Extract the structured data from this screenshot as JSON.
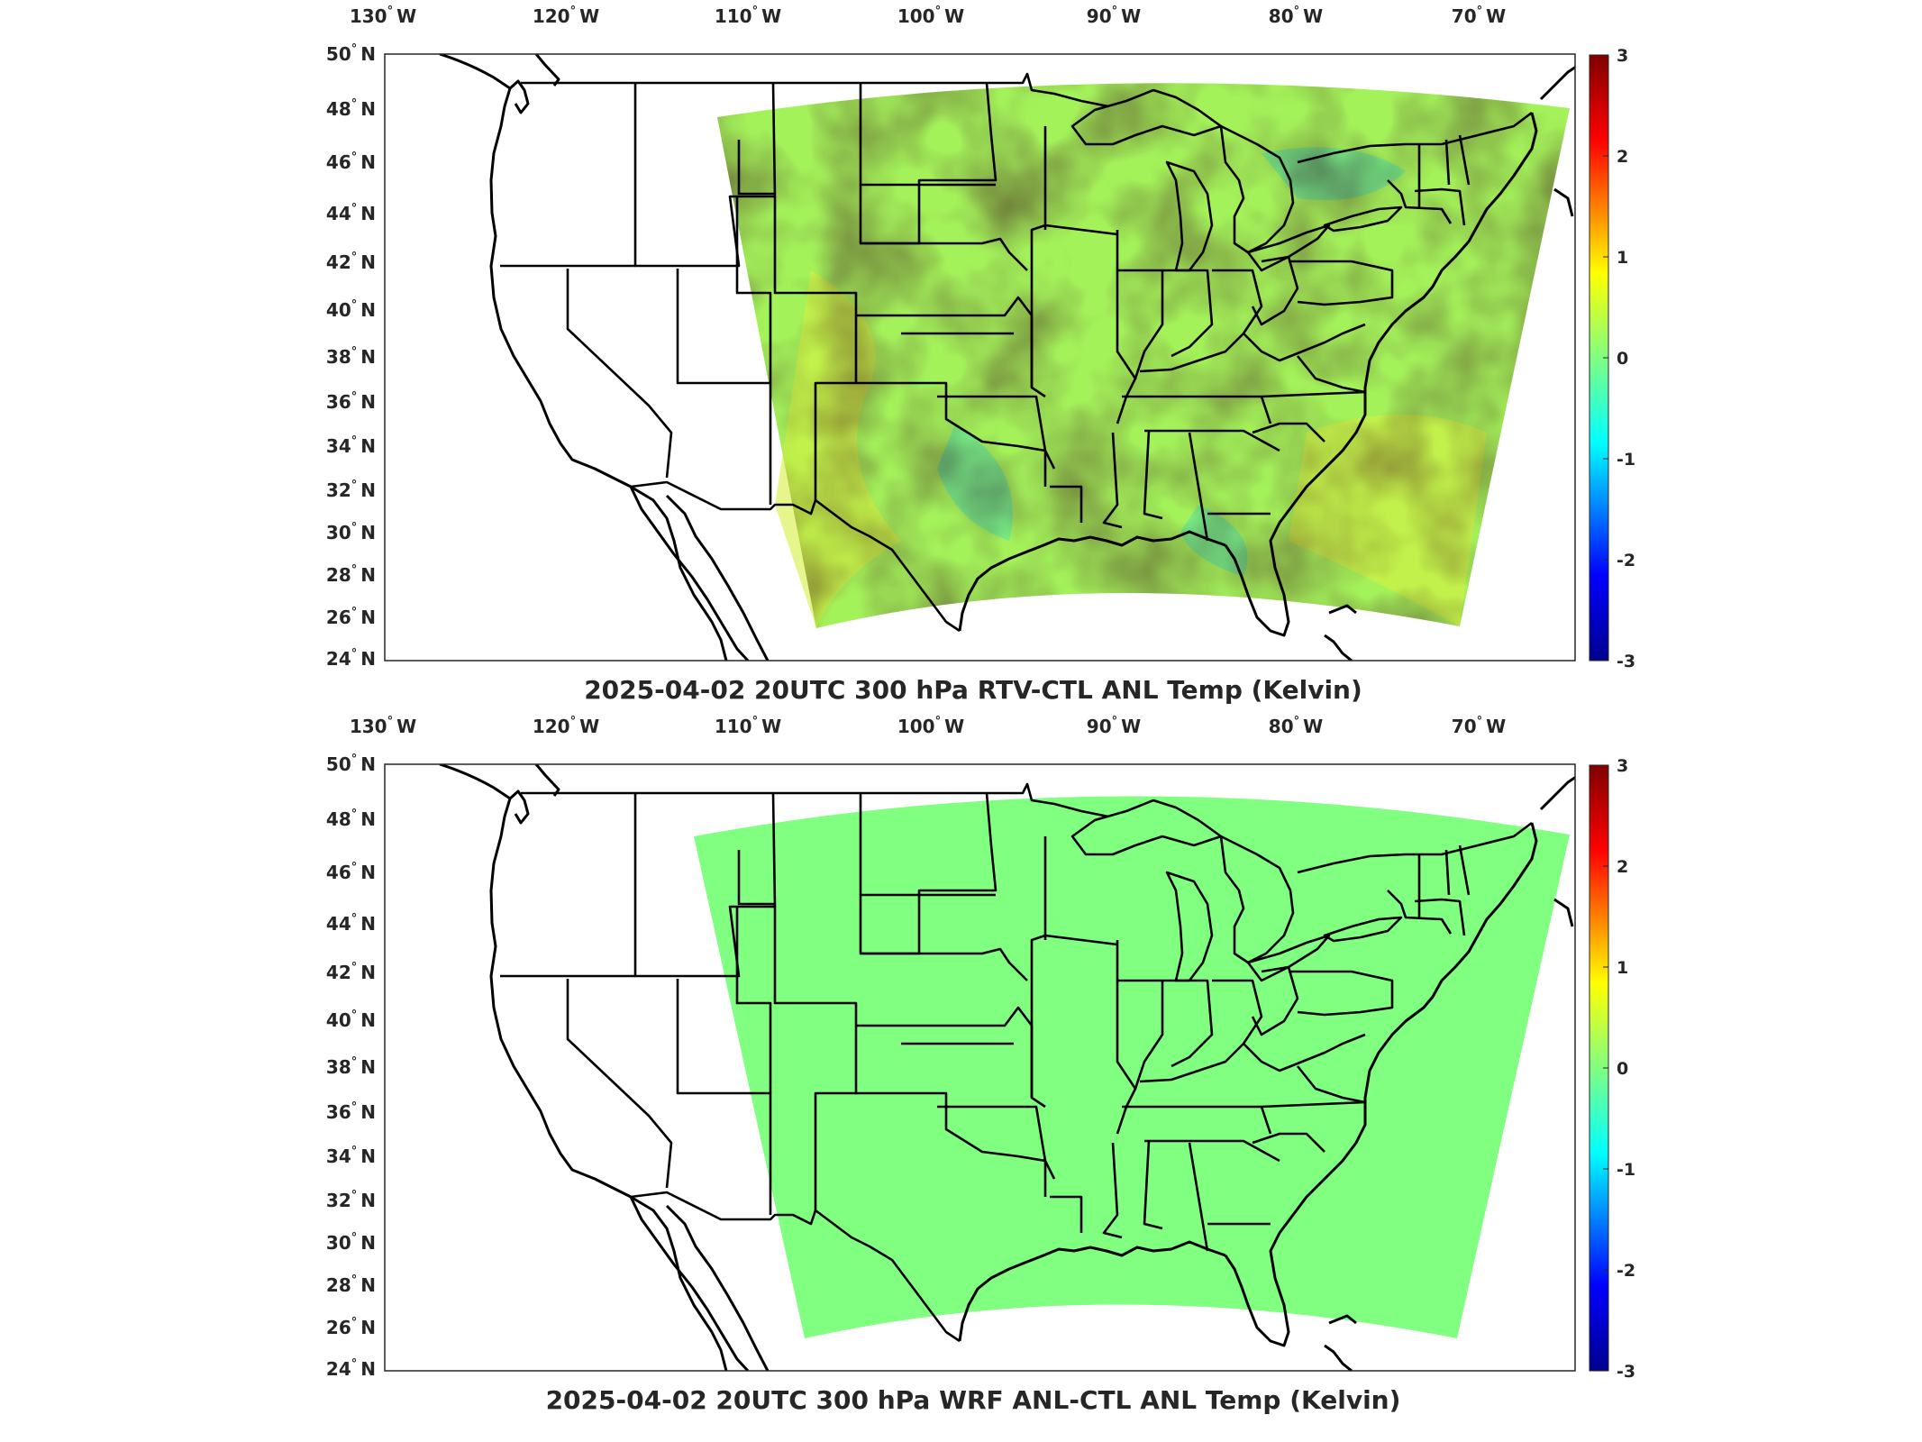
{
  "colors": {
    "zero_field": "#80ff80",
    "rtv_base": "#a4f25a",
    "rtv_warm": "#d6f040",
    "rtv_cool": "#52e6a8",
    "colormap": [
      "#00008f",
      "#0000ff",
      "#00ffff",
      "#80ff80",
      "#ffff00",
      "#ff0000",
      "#800000"
    ],
    "borders": "#000000",
    "axes": "#262626"
  },
  "axes": {
    "lon_labels": [
      "130",
      "120",
      "110",
      "100",
      "90",
      "80",
      "70"
    ],
    "lon_suffix": "W",
    "lat_labels": [
      "50",
      "48",
      "46",
      "44",
      "42",
      "40",
      "38",
      "36",
      "34",
      "32",
      "30",
      "28",
      "26",
      "24"
    ],
    "lat_suffix": "N",
    "degree_symbol": "°"
  },
  "colorbar": {
    "tick_labels": [
      "3",
      "2",
      "1",
      "0",
      "-1",
      "-2",
      "-3"
    ],
    "range": [
      -3,
      3
    ]
  },
  "panels": [
    {
      "title": "2025-04-02 20UTC 300 hPa RTV-CTL ANL Temp (Kelvin)",
      "field": "RTV-CTL",
      "field_style": "textured"
    },
    {
      "title": "2025-04-02 20UTC 300 hPa WRF ANL-CTL ANL Temp (Kelvin)",
      "field": "WRF ANL-CTL",
      "field_style": "uniform"
    }
  ]
}
